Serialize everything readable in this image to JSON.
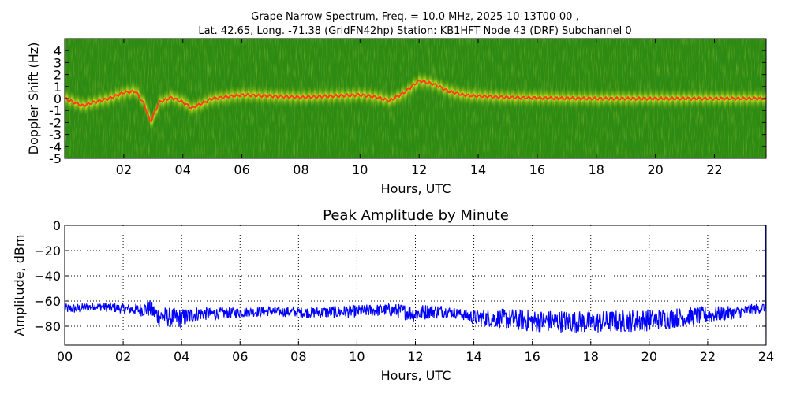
{
  "figure": {
    "title_line1": "Grape Narrow Spectrum, Freq. = 10.0 MHz, 2025-10-13T00-00 ,",
    "title_line2": "Lat.  42.65, Long. -71.38 (GridFN42hp) Station: KB1HFT Node 43 (DRF) Subchannel 0"
  },
  "colors": {
    "spectrogram_background": "#2d8a12",
    "spectrogram_mid": "#9acd1e",
    "spectrogram_peak": "#ffff33",
    "spectrogram_trace": "#ff3b1f",
    "amplitude_line": "#0000ff",
    "axes": "#000000"
  },
  "chart_data": [
    {
      "type": "heatmap",
      "title": "",
      "xlabel": "Hours, UTC",
      "ylabel": "Doppler Shift (Hz)",
      "xlim": [
        0,
        23.75
      ],
      "ylim": [
        -5,
        5
      ],
      "xticks": [
        2,
        4,
        6,
        8,
        10,
        12,
        14,
        16,
        18,
        20,
        22
      ],
      "xtick_labels": [
        "02",
        "04",
        "06",
        "08",
        "10",
        "12",
        "14",
        "16",
        "18",
        "20",
        "22"
      ],
      "yticks": [
        4,
        3,
        2,
        1,
        0,
        -1,
        -2,
        -3,
        -4,
        -5
      ],
      "ytick_labels": [
        "4",
        "3",
        "2",
        "1",
        "0",
        "-1",
        "-2",
        "-3",
        "-4",
        "-5"
      ],
      "grid": false,
      "peak_doppler_trace": {
        "x": [
          0,
          0.3,
          0.6,
          1.0,
          1.5,
          2.0,
          2.4,
          2.7,
          2.9,
          3.2,
          3.6,
          4.0,
          4.3,
          5.0,
          6.0,
          7.0,
          8.0,
          9.0,
          10.0,
          10.6,
          11.0,
          11.5,
          12.0,
          12.5,
          13.0,
          13.5,
          14.0,
          15.0,
          16.0,
          18.0,
          20.0,
          22.0,
          23.75
        ],
        "y": [
          0,
          -0.3,
          -0.6,
          -0.3,
          0.0,
          0.5,
          0.6,
          -0.5,
          -2.0,
          -0.3,
          0.1,
          -0.3,
          -0.8,
          0.0,
          0.3,
          0.2,
          0.1,
          0.2,
          0.3,
          0.1,
          -0.2,
          0.5,
          1.5,
          1.2,
          0.6,
          0.3,
          0.2,
          0.1,
          0.05,
          0.0,
          0.0,
          0.0,
          0.0
        ]
      }
    },
    {
      "type": "line",
      "title": "Peak Amplitude by Minute",
      "xlabel": "Hours, UTC",
      "ylabel": "Amplitude, dBm",
      "xlim": [
        0,
        24
      ],
      "ylim": [
        -95,
        0
      ],
      "xticks": [
        0,
        2,
        4,
        6,
        8,
        10,
        12,
        14,
        16,
        18,
        20,
        22,
        24
      ],
      "xtick_labels": [
        "00",
        "02",
        "04",
        "06",
        "08",
        "10",
        "12",
        "14",
        "16",
        "18",
        "20",
        "22",
        "24"
      ],
      "yticks": [
        0,
        -20,
        -40,
        -60,
        -80
      ],
      "ytick_labels": [
        "0",
        "−20",
        "−40",
        "−60",
        "−80"
      ],
      "grid": true,
      "series": [
        {
          "values_note_excluded": true,
          "x": [
            0,
            0.5,
            1.0,
            1.5,
            2.0,
            2.5,
            2.9,
            3.2,
            3.6,
            4.0,
            4.5,
            5.0,
            6.0,
            7.0,
            8.0,
            9.0,
            10.0,
            11.0,
            11.5,
            12.0,
            12.5,
            13.0,
            13.5,
            14.0,
            15.0,
            16.0,
            17.0,
            18.0,
            19.0,
            20.0,
            21.0,
            22.0,
            23.0,
            23.95
          ],
          "base": [
            -66,
            -66,
            -64,
            -65,
            -66,
            -67,
            -66,
            -72,
            -73,
            -74,
            -70,
            -70,
            -69,
            -68,
            -69,
            -69,
            -68,
            -67,
            -68,
            -70,
            -68,
            -68,
            -70,
            -73,
            -74,
            -76,
            -76,
            -77,
            -76,
            -75,
            -73,
            -71,
            -69,
            -65
          ],
          "spread": [
            4,
            4,
            3,
            4,
            4,
            5,
            7,
            8,
            8,
            8,
            6,
            5,
            4,
            4,
            4,
            5,
            5,
            5,
            6,
            7,
            6,
            5,
            4,
            6,
            8,
            9,
            9,
            9,
            9,
            9,
            8,
            7,
            5,
            4
          ]
        }
      ]
    }
  ]
}
